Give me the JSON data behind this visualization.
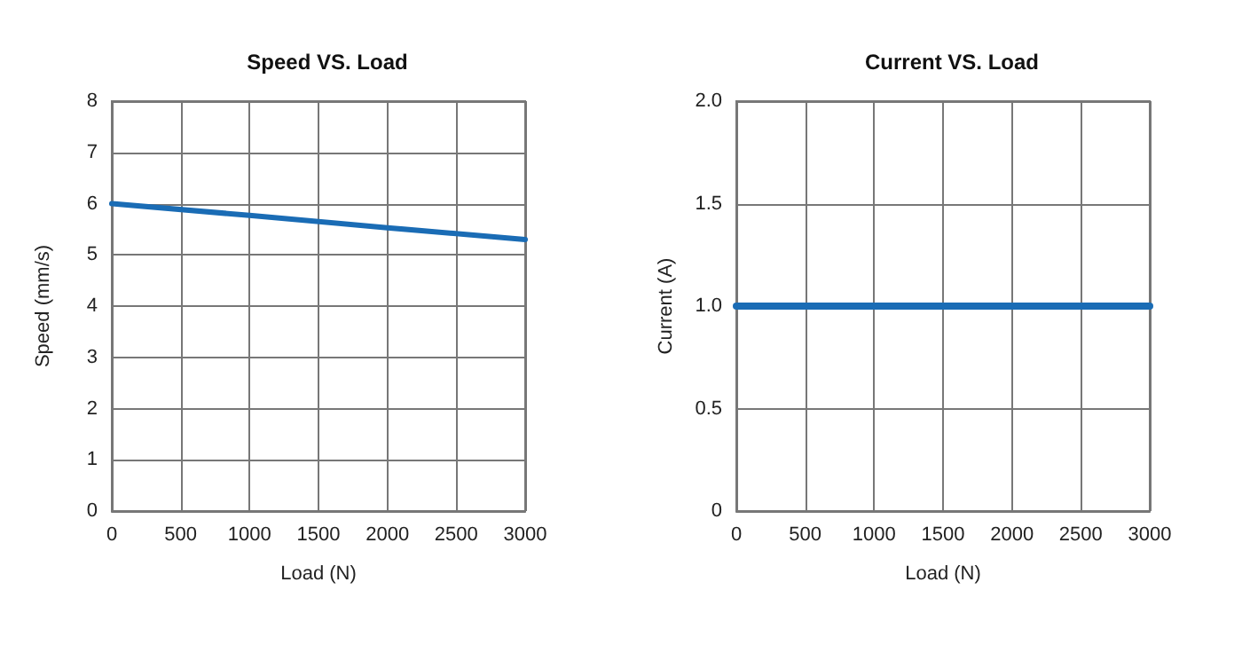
{
  "chart_data": [
    {
      "type": "line",
      "title": "Speed VS. Load",
      "xlabel": "Load (N)",
      "ylabel": "Speed (mm/s)",
      "x": [
        0,
        1000,
        2000,
        3000
      ],
      "series": [
        {
          "color": "#1a6cb5",
          "values": [
            6.0,
            5.77,
            5.53,
            5.3
          ]
        }
      ],
      "xlim": [
        0,
        3000
      ],
      "xticks": [
        0,
        500,
        1000,
        1500,
        2000,
        2500,
        3000
      ],
      "ylim": [
        0,
        8
      ],
      "yticks": [
        0,
        1,
        2,
        3,
        4,
        5,
        6,
        7,
        8
      ],
      "grid": true,
      "marker": "none",
      "line_style": "solid"
    },
    {
      "type": "line",
      "title": "Current VS. Load",
      "xlabel": "Load (N)",
      "ylabel": "Current (A)",
      "x": [
        0,
        3000
      ],
      "series": [
        {
          "color": "#1a6cb5",
          "values": [
            1.0,
            1.0
          ]
        }
      ],
      "xlim": [
        0,
        3000
      ],
      "xticks": [
        0,
        500,
        1000,
        1500,
        2000,
        2500,
        3000
      ],
      "ylim": [
        0,
        2
      ],
      "yticks": [
        0,
        0.5,
        {
          "value": 1,
          "label": "1.0"
        },
        1.5,
        {
          "value": 2,
          "label": "2.0"
        }
      ],
      "grid": true,
      "marker": "none",
      "line_style": "solid"
    }
  ]
}
